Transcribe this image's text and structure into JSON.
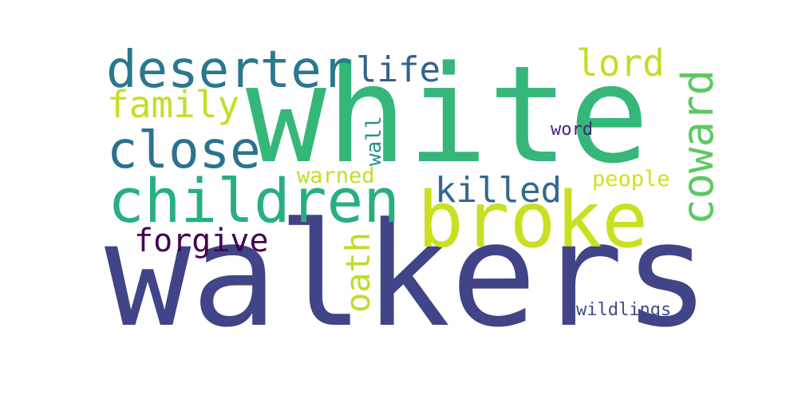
{
  "words": [
    {
      "text": "walkers",
      "color": "#414487"
    },
    {
      "text": "white",
      "color": "#35b779"
    },
    {
      "text": "broke",
      "color": "#c8e020"
    },
    {
      "text": "children",
      "color": "#29af7f"
    },
    {
      "text": "deserter",
      "color": "#2a788e"
    },
    {
      "text": "close",
      "color": "#2c728e"
    },
    {
      "text": "family",
      "color": "#c2df23"
    },
    {
      "text": "life",
      "color": "#34618d"
    },
    {
      "text": "lord",
      "color": "#bddf26"
    },
    {
      "text": "coward",
      "color": "#5ec962"
    },
    {
      "text": "killed",
      "color": "#31688e"
    },
    {
      "text": "forgive",
      "color": "#440154"
    },
    {
      "text": "oath",
      "color": "#bade28"
    },
    {
      "text": "wall",
      "color": "#21918c"
    },
    {
      "text": "warned",
      "color": "#c2df23"
    },
    {
      "text": "people",
      "color": "#d0e11c"
    },
    {
      "text": "word",
      "color": "#482475"
    },
    {
      "text": "wildlings",
      "color": "#3e4c8a"
    }
  ]
}
